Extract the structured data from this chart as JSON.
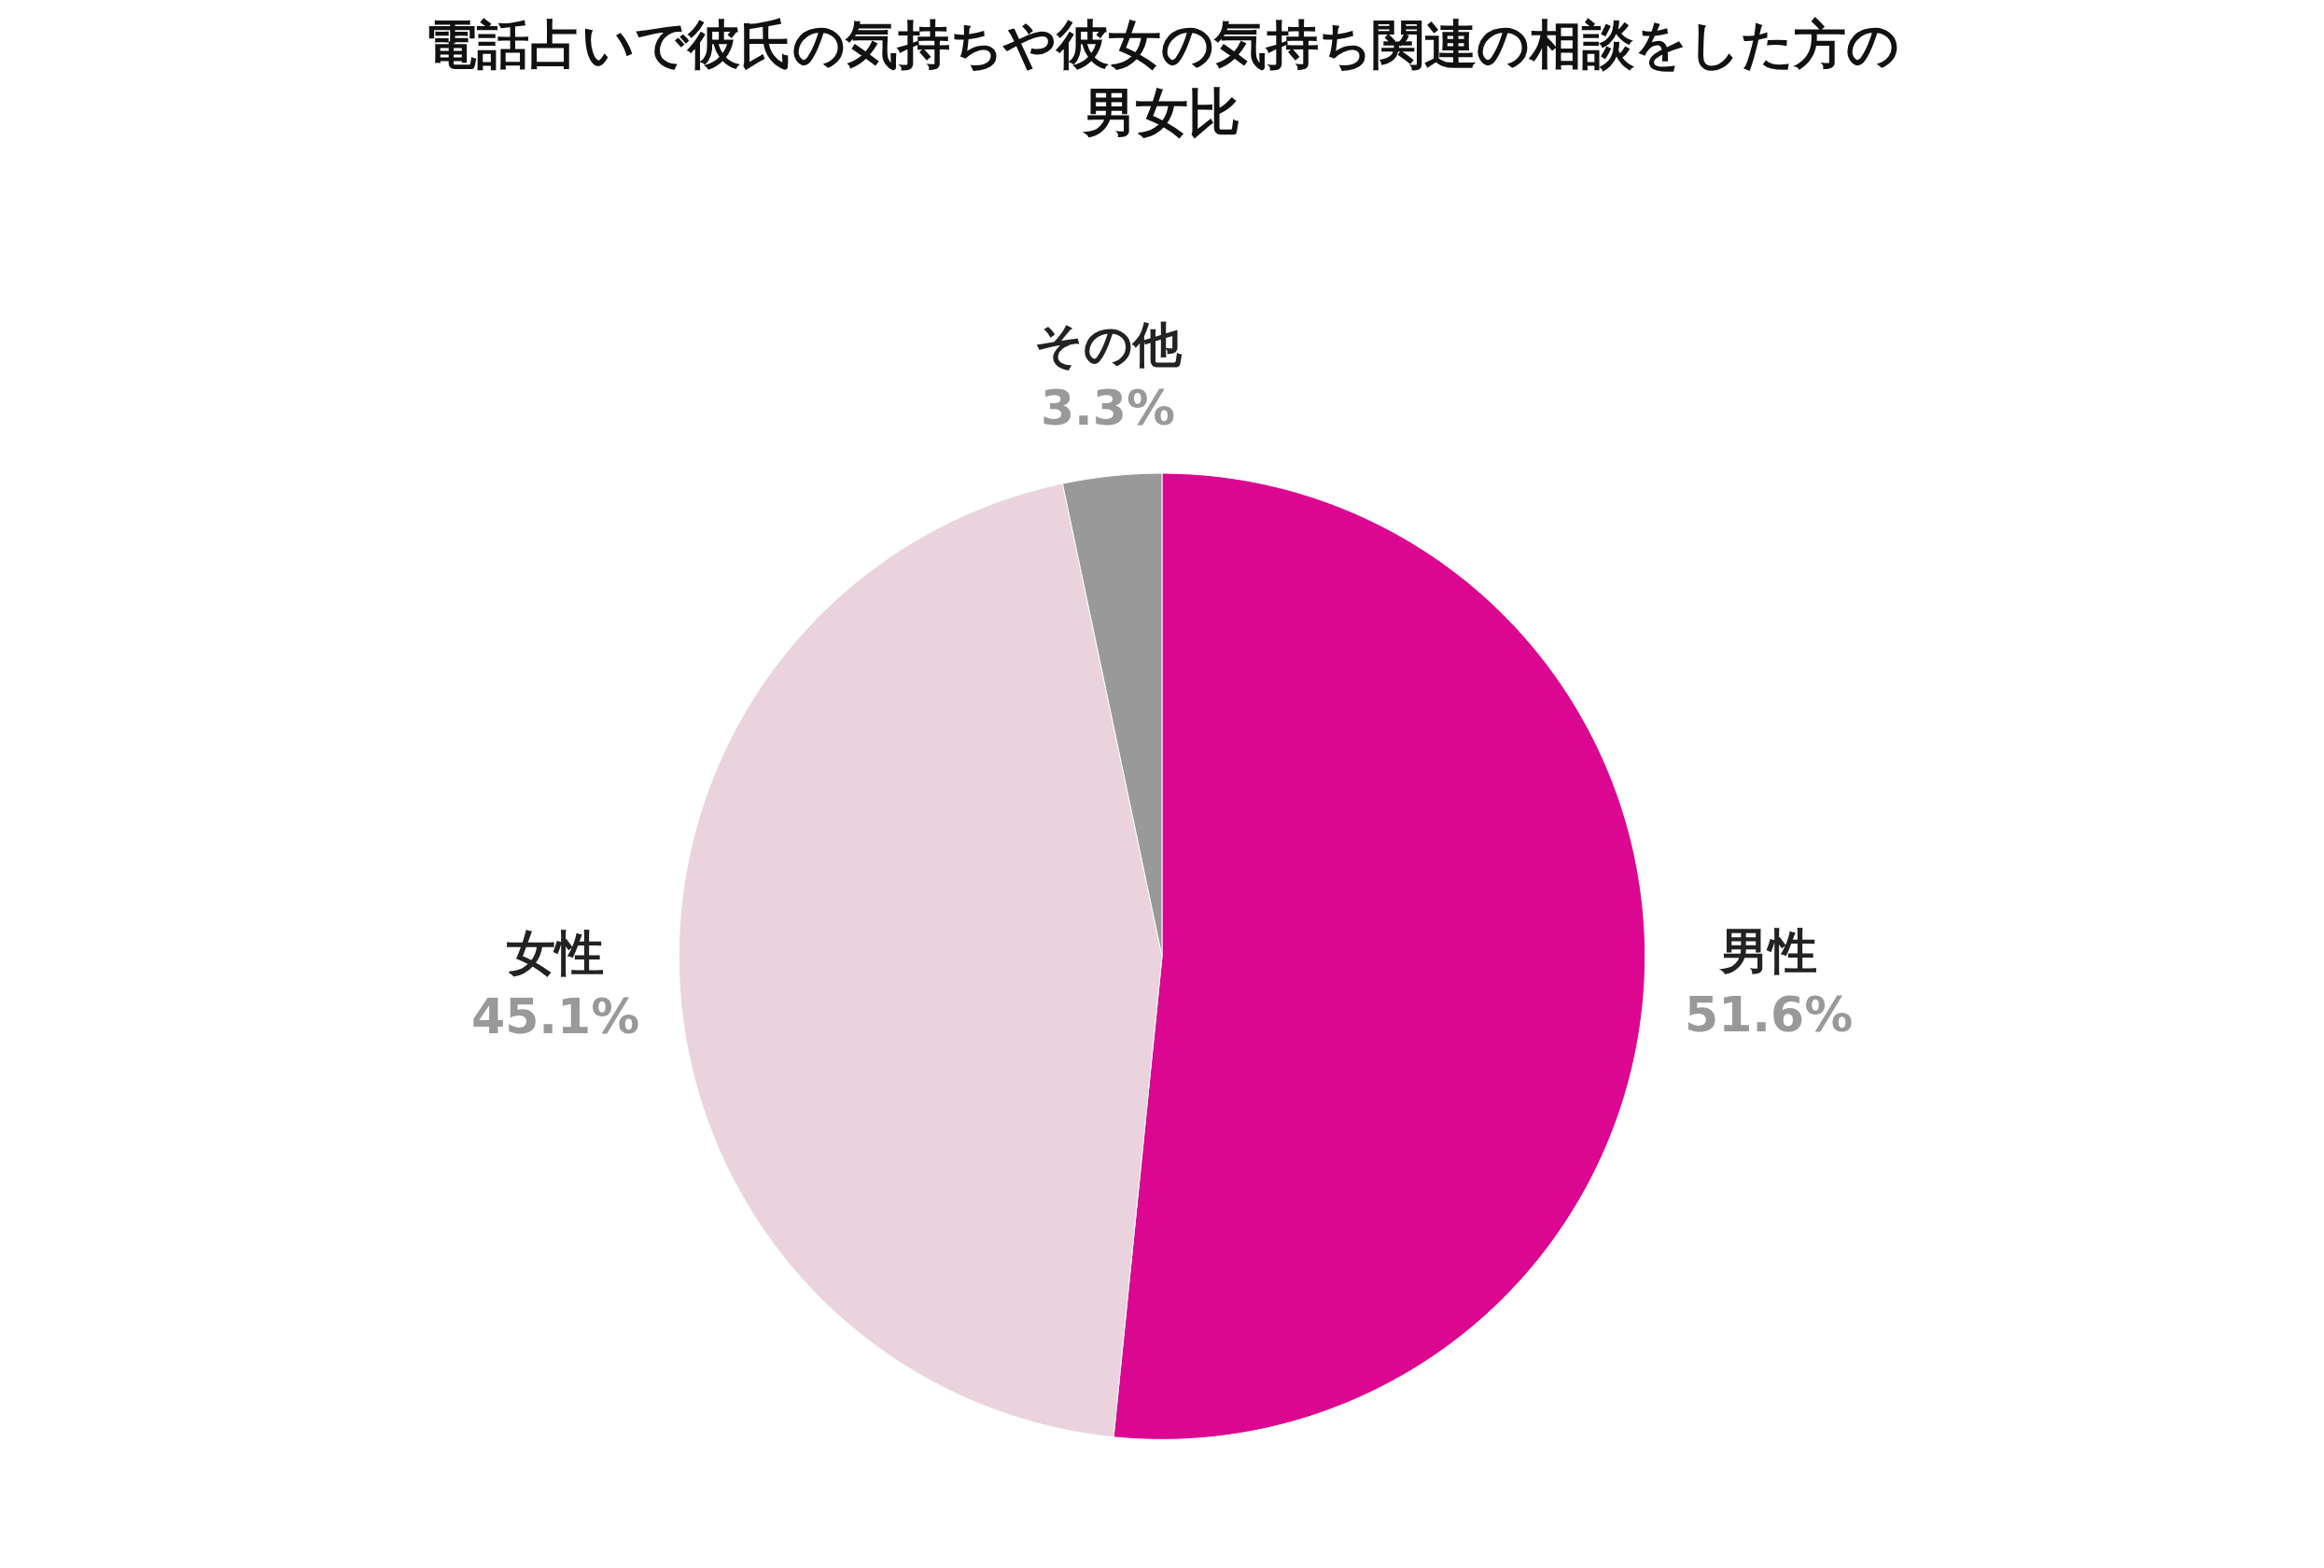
{
  "chart_data": {
    "type": "pie",
    "title": "電話占いで彼氏の気持ちや彼女の気持ち関連の相談をした方の男女比",
    "categories": [
      "男性",
      "女性",
      "その他"
    ],
    "values": [
      51.6,
      45.1,
      3.3
    ],
    "value_labels": [
      "51.6%",
      "45.1%",
      "3.3%"
    ],
    "colors": [
      "#dc0790",
      "#ead3dc",
      "#999999"
    ]
  }
}
